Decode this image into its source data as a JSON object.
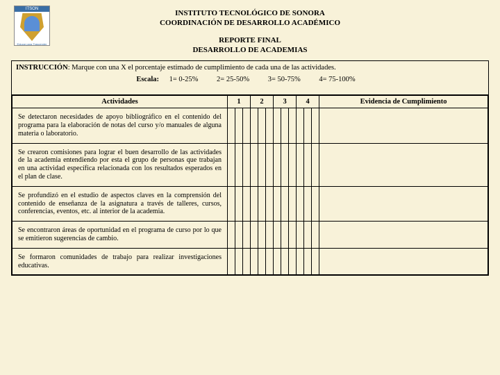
{
  "logo": {
    "top": "ITSON",
    "bottom": "Educar para Trascender"
  },
  "header": {
    "line1": "INSTITUTO TECNOLÓGICO DE SONORA",
    "line2": "COORDINACIÓN DE DESARROLLO ACADÉMICO",
    "line3": "REPORTE FINAL",
    "line4": "DESARROLLO DE ACADEMIAS"
  },
  "instruction_label": "INSTRUCCIÓN",
  "instruction_text": ": Marque con una X  el porcentaje estimado de cumplimiento de cada una de las actividades.",
  "scale": {
    "label": "Escala:",
    "s1": "1= 0-25%",
    "s2": "2= 25-50%",
    "s3": "3= 50-75%",
    "s4": "4= 75-100%"
  },
  "columns": {
    "activities": "Actividades",
    "c1": "1",
    "c2": "2",
    "c3": "3",
    "c4": "4",
    "evidence": "Evidencia de Cumplimiento"
  },
  "rows": [
    "Se detectaron necesidades de apoyo bibliográfico en el contenido del programa para la elaboración de notas del curso y/o manuales de alguna materia o laboratorio.",
    "Se crearon comisiones para lograr el buen desarrollo de las actividades de la academia entendiendo por esta el grupo de personas que  trabajan en una actividad específica relacionada con los resultados esperados en el plan de clase.",
    "Se profundizó en el estudio de aspectos claves en la comprensión del contenido de enseñanza de la asignatura a través de talleres, cursos, conferencias, eventos, etc. al interior de la academia.",
    "Se encontraron áreas de oportunidad en el programa de curso por lo que se emitieron sugerencias de cambio.",
    "Se formaron comunidades de trabajo para realizar investigaciones educativas."
  ],
  "colors": {
    "page_bg": "#f8f2d9",
    "border": "#000000"
  }
}
